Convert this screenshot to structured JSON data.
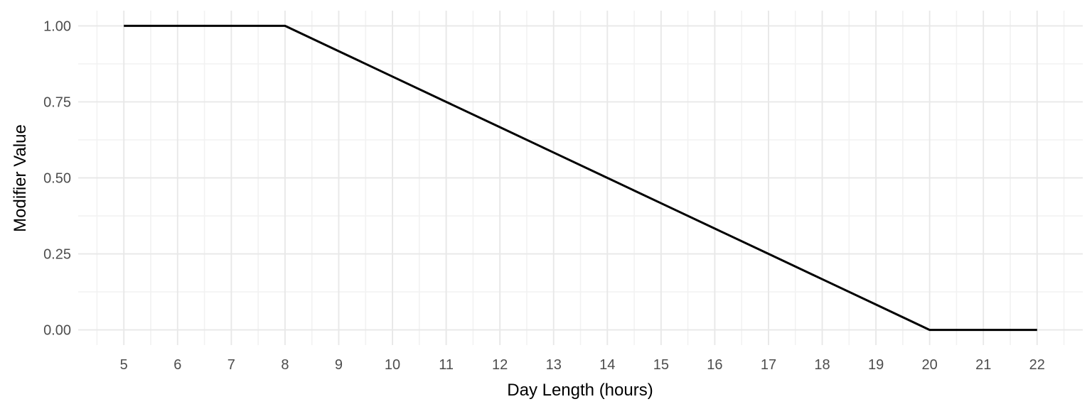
{
  "chart_data": {
    "type": "line",
    "title": "",
    "xlabel": "Day Length (hours)",
    "ylabel": "Modifier Value",
    "x": [
      5,
      6,
      7,
      8,
      9,
      10,
      11,
      12,
      13,
      14,
      15,
      16,
      17,
      18,
      19,
      20,
      21,
      22
    ],
    "y": [
      1.0,
      1.0,
      1.0,
      1.0,
      0.9167,
      0.8333,
      0.75,
      0.6667,
      0.5833,
      0.5,
      0.4167,
      0.3333,
      0.25,
      0.1667,
      0.0833,
      0.0,
      0.0,
      0.0
    ],
    "segments_note": "flat at 1.00 from hour 5 to 8, linear decline from 1.00 at hour 8 to 0.00 at hour 20, flat at 0.00 from hour 20 to 22",
    "xlim": [
      4.15,
      22.85
    ],
    "ylim": [
      -0.05,
      1.05
    ],
    "x_ticks": [
      {
        "v": 5,
        "label": "5"
      },
      {
        "v": 6,
        "label": "6"
      },
      {
        "v": 7,
        "label": "7"
      },
      {
        "v": 8,
        "label": "8"
      },
      {
        "v": 9,
        "label": "9"
      },
      {
        "v": 10,
        "label": "10"
      },
      {
        "v": 11,
        "label": "11"
      },
      {
        "v": 12,
        "label": "12"
      },
      {
        "v": 13,
        "label": "13"
      },
      {
        "v": 14,
        "label": "14"
      },
      {
        "v": 15,
        "label": "15"
      },
      {
        "v": 16,
        "label": "16"
      },
      {
        "v": 17,
        "label": "17"
      },
      {
        "v": 18,
        "label": "18"
      },
      {
        "v": 19,
        "label": "19"
      },
      {
        "v": 20,
        "label": "20"
      },
      {
        "v": 21,
        "label": "21"
      },
      {
        "v": 22,
        "label": "22"
      }
    ],
    "y_ticks": [
      {
        "v": 0.0,
        "label": "0.00"
      },
      {
        "v": 0.25,
        "label": "0.25"
      },
      {
        "v": 0.5,
        "label": "0.50"
      },
      {
        "v": 0.75,
        "label": "0.75"
      },
      {
        "v": 1.0,
        "label": "1.00"
      }
    ],
    "x_minor": [
      4.5,
      5.5,
      6.5,
      7.5,
      8.5,
      9.5,
      10.5,
      11.5,
      12.5,
      13.5,
      14.5,
      15.5,
      16.5,
      17.5,
      18.5,
      19.5,
      20.5,
      21.5,
      22.5
    ],
    "y_minor": [
      0.125,
      0.375,
      0.625,
      0.875
    ],
    "grid": true,
    "legend": "none",
    "colors": {
      "line": "#000000",
      "grid_major": "#E8E8E8",
      "grid_minor": "#F2F2F2",
      "tick_label": "#4D4D4D",
      "axis_title": "#000000",
      "background": "#FFFFFF"
    }
  }
}
